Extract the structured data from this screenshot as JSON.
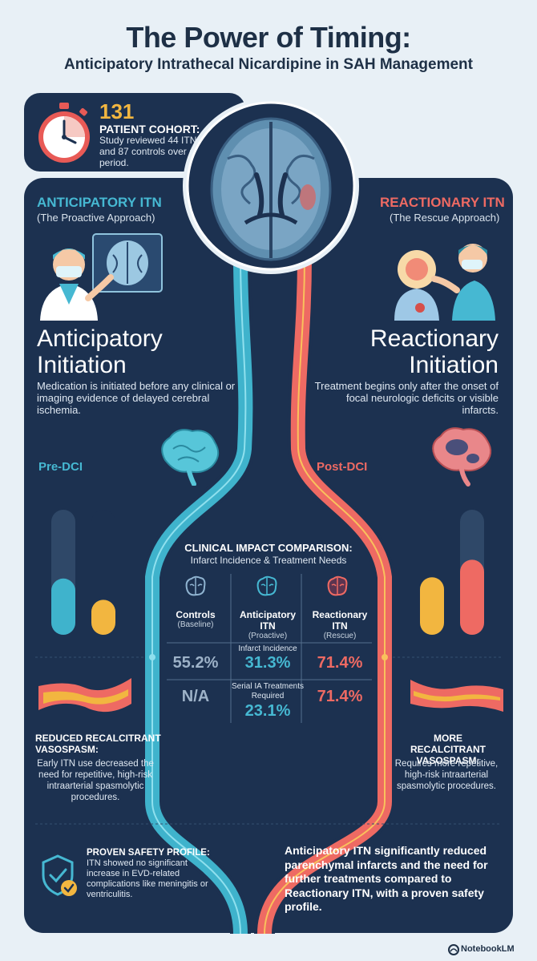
{
  "header": {
    "title": "The Power of Timing:",
    "subtitle": "Anticipatory Intrathecal Nicardipine in SAH Management"
  },
  "cohort": {
    "number": "131",
    "label": "PATIENT COHORT:",
    "text": "Study reviewed 44 ITN cases and 87 controls over a ten-year period."
  },
  "anticipatory": {
    "title": "ANTICIPATORY ITN",
    "subtitle": "(The Proactive Approach)",
    "heading_line1": "Anticipatory",
    "heading_line2": "Initiation",
    "description": "Medication is initiated before any clinical or imaging evidence of delayed cerebral ischemia.",
    "phase": "Pre-DCI",
    "outcome_title_line1": "REDUCED RECALCITRANT",
    "outcome_title_line2": "VASOSPASM:",
    "outcome_text": "Early ITN use decreased the need for repetitive, high-risk intraarterial spasmolytic procedures.",
    "bars": [
      0.88,
      0.45,
      0.28
    ]
  },
  "reactionary": {
    "title": "REACTIONARY ITN",
    "subtitle": "(The Rescue Approach)",
    "heading_line1": "Reactionary",
    "heading_line2": "Initiation",
    "description": "Treatment begins only after the onset of focal neurologic deficits or visible infarcts.",
    "phase": "Post-DCI",
    "outcome_title_line1": "MORE RECALCITRANT",
    "outcome_title_line2": "VASOSPASM:",
    "outcome_text": "Requires more repetitive, high-risk intraarterial spasmolytic procedures.",
    "bars": [
      0.46,
      0.9,
      0.6
    ]
  },
  "comparison": {
    "title": "CLINICAL IMPACT COMPARISON:",
    "subtitle": "Infarct Incidence & Treatment Needs",
    "controls": {
      "name": "Controls",
      "role": "(Baseline)",
      "infarct": "55.2%",
      "treatments": "N/A"
    },
    "anticipatory": {
      "name_line1": "Anticipatory",
      "name_line2": "ITN",
      "role": "(Proactive)",
      "infarct": "31.3%",
      "treatments": "23.1%"
    },
    "reactionary": {
      "name_line1": "Reactionary",
      "name_line2": "ITN",
      "role": "(Rescue)",
      "infarct": "71.4%",
      "treatments": "71.4%"
    },
    "infarct_label": "Infarct Incidence",
    "treatments_label_line1": "Serial IA Treatments",
    "treatments_label_line2": "Required"
  },
  "safety": {
    "title": "PROVEN SAFETY PROFILE:",
    "text": "ITN showed no significant increase in EVD-related complications like meningitis or ventriculitis."
  },
  "conclusion": "Anticipatory ITN significantly reduced parenchymal infarcts and the need for further treatments compared to Reactionary ITN, with a proven safety profile.",
  "brand": "NotebookLM",
  "colors": {
    "navy": "#1c3150",
    "teal": "#46b8d2",
    "coral": "#ee6a63",
    "yellow": "#f2b640"
  }
}
